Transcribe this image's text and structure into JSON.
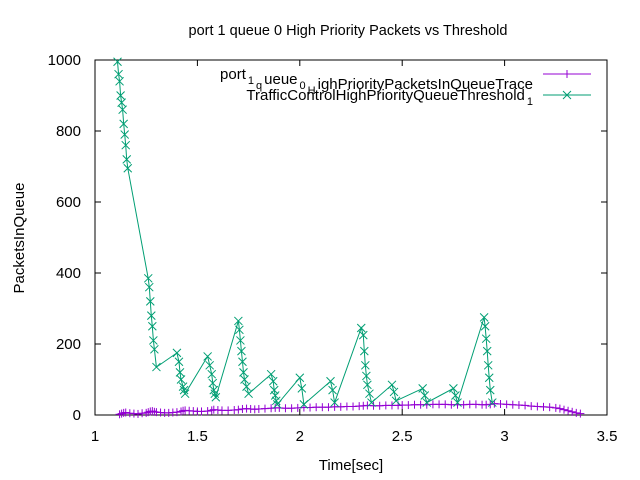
{
  "chart_data": {
    "type": "line",
    "title": "port 1 queue 0 High Priority Packets vs Threshold",
    "xlabel": "Time[sec]",
    "ylabel": "PacketsInQueue",
    "xlim": [
      1,
      3.5
    ],
    "ylim": [
      0,
      1000
    ],
    "xticks": [
      "1",
      "1.5",
      "2",
      "2.5",
      "3",
      "3.5"
    ],
    "yticks": [
      "0",
      "200",
      "400",
      "600",
      "800",
      "1000"
    ],
    "grid": false,
    "legend_position": "top-right",
    "series": [
      {
        "name": "port_1queue_0HighPriorityPacketsInQueueTrace",
        "legend": [
          {
            "t": "port",
            "s": false
          },
          {
            "t": "1",
            "s": true
          },
          {
            "t": "q",
            "s": true
          },
          {
            "t": "ueue",
            "s": false
          },
          {
            "t": "0",
            "s": true
          },
          {
            "t": "H",
            "s": true
          },
          {
            "t": "ighPriorityPacketsInQueueTrace",
            "s": false
          }
        ],
        "color": "#9400d3",
        "marker": "plus",
        "x": [
          1.12,
          1.13,
          1.14,
          1.15,
          1.17,
          1.19,
          1.21,
          1.23,
          1.25,
          1.26,
          1.27,
          1.28,
          1.29,
          1.3,
          1.32,
          1.34,
          1.36,
          1.38,
          1.4,
          1.42,
          1.43,
          1.44,
          1.46,
          1.48,
          1.5,
          1.52,
          1.55,
          1.57,
          1.58,
          1.6,
          1.62,
          1.65,
          1.68,
          1.7,
          1.72,
          1.74,
          1.76,
          1.78,
          1.8,
          1.83,
          1.86,
          1.88,
          1.9,
          1.93,
          1.96,
          1.99,
          2.02,
          2.05,
          2.08,
          2.11,
          2.14,
          2.17,
          2.2,
          2.23,
          2.26,
          2.29,
          2.31,
          2.33,
          2.36,
          2.39,
          2.42,
          2.45,
          2.48,
          2.5,
          2.53,
          2.56,
          2.59,
          2.62,
          2.65,
          2.68,
          2.71,
          2.74,
          2.77,
          2.8,
          2.83,
          2.86,
          2.89,
          2.91,
          2.93,
          2.95,
          2.98,
          3.01,
          3.04,
          3.07,
          3.1,
          3.13,
          3.16,
          3.19,
          3.22,
          3.25,
          3.27,
          3.29,
          3.31,
          3.33,
          3.35,
          3.37
        ],
        "y": [
          2,
          4,
          6,
          7,
          5,
          4,
          3,
          5,
          6,
          8,
          10,
          11,
          9,
          8,
          7,
          6,
          6,
          7,
          8,
          10,
          12,
          13,
          12,
          11,
          10,
          10,
          11,
          13,
          15,
          14,
          13,
          13,
          14,
          15,
          17,
          18,
          17,
          16,
          17,
          18,
          19,
          20,
          20,
          19,
          19,
          20,
          21,
          21,
          22,
          22,
          22,
          23,
          23,
          24,
          24,
          25,
          26,
          27,
          26,
          26,
          27,
          27,
          27,
          28,
          28,
          29,
          29,
          29,
          30,
          30,
          30,
          29,
          29,
          29,
          30,
          30,
          29,
          29,
          30,
          32,
          31,
          30,
          29,
          28,
          27,
          25,
          24,
          23,
          22,
          20,
          18,
          15,
          12,
          9,
          6,
          4
        ]
      },
      {
        "name": "TrafficControlHighPriorityQueueThreshold_1",
        "legend": [
          {
            "t": "TrafficControlHighPriorityQueueThreshold",
            "s": false
          },
          {
            "t": "1",
            "s": true
          }
        ],
        "color": "#009e73",
        "marker": "x",
        "x": [
          1.11,
          1.115,
          1.12,
          1.125,
          1.13,
          1.135,
          1.14,
          1.145,
          1.15,
          1.155,
          1.16,
          1.26,
          1.265,
          1.27,
          1.275,
          1.28,
          1.285,
          1.29,
          1.3,
          1.4,
          1.41,
          1.415,
          1.42,
          1.43,
          1.435,
          1.44,
          1.55,
          1.56,
          1.57,
          1.575,
          1.58,
          1.585,
          1.59,
          1.7,
          1.705,
          1.71,
          1.715,
          1.72,
          1.725,
          1.73,
          1.74,
          1.75,
          1.86,
          1.87,
          1.875,
          1.88,
          1.885,
          1.89,
          2.0,
          2.01,
          2.02,
          2.15,
          2.16,
          2.17,
          2.3,
          2.31,
          2.315,
          2.32,
          2.325,
          2.33,
          2.34,
          2.35,
          2.45,
          2.46,
          2.47,
          2.6,
          2.61,
          2.62,
          2.75,
          2.76,
          2.77,
          2.9,
          2.905,
          2.91,
          2.915,
          2.92,
          2.925,
          2.93,
          2.94
        ],
        "y": [
          995,
          960,
          940,
          900,
          880,
          860,
          820,
          790,
          760,
          720,
          695,
          385,
          360,
          320,
          280,
          250,
          210,
          185,
          135,
          175,
          150,
          120,
          100,
          80,
          70,
          60,
          165,
          140,
          115,
          90,
          70,
          60,
          50,
          265,
          240,
          210,
          180,
          150,
          120,
          100,
          80,
          60,
          115,
          95,
          70,
          55,
          40,
          30,
          105,
          75,
          30,
          95,
          70,
          35,
          245,
          225,
          180,
          140,
          110,
          85,
          60,
          35,
          85,
          65,
          40,
          75,
          55,
          35,
          75,
          55,
          35,
          275,
          250,
          215,
          180,
          140,
          105,
          70,
          35
        ]
      }
    ]
  }
}
